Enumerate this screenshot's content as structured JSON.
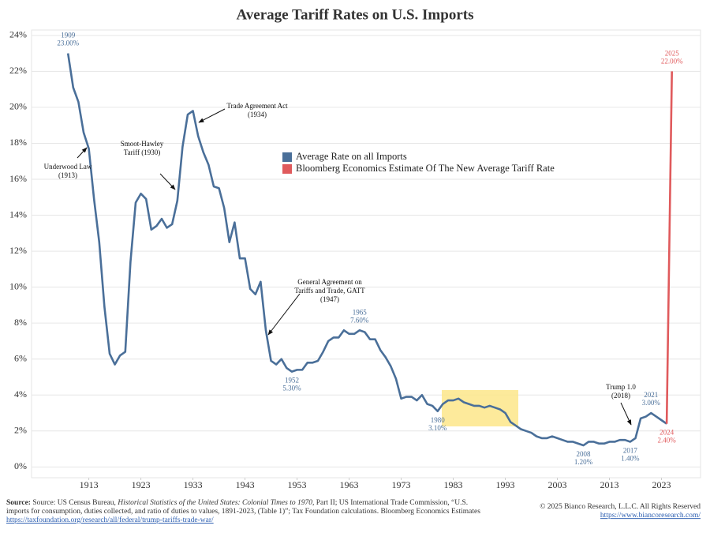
{
  "chart_data": {
    "type": "line",
    "title": "Average Tariff Rates on U.S. Imports",
    "xlim": [
      1902,
      2030.5
    ],
    "xticks": [
      1913,
      1923,
      1933,
      1943,
      1953,
      1963,
      1973,
      1983,
      1993,
      2003,
      2013,
      2023
    ],
    "ylim": [
      -0.6,
      24.3
    ],
    "yticks": [
      {
        "value": 0,
        "label": "0%"
      },
      {
        "value": 2,
        "label": "2%"
      },
      {
        "value": 4,
        "label": "4%"
      },
      {
        "value": 6,
        "label": "6%"
      },
      {
        "value": 8,
        "label": "8%"
      },
      {
        "value": 10,
        "label": "10%"
      },
      {
        "value": 12,
        "label": "12%"
      },
      {
        "value": 14,
        "label": "14%"
      },
      {
        "value": 16,
        "label": "16%"
      },
      {
        "value": 18,
        "label": "18%"
      },
      {
        "value": 20,
        "label": "20%"
      },
      {
        "value": 22,
        "label": "22%"
      },
      {
        "value": 24,
        "label": "24%"
      }
    ],
    "grid": true,
    "series": [
      {
        "name": "Average Rate on all Imports",
        "color": "#4a6f99",
        "x": [
          1909,
          1910,
          1911,
          1912,
          1913,
          1914,
          1915,
          1916,
          1917,
          1918,
          1919,
          1920,
          1921,
          1922,
          1923,
          1924,
          1925,
          1926,
          1927,
          1928,
          1929,
          1930,
          1931,
          1932,
          1933,
          1934,
          1935,
          1936,
          1937,
          1938,
          1939,
          1940,
          1941,
          1942,
          1943,
          1944,
          1945,
          1946,
          1947,
          1948,
          1949,
          1950,
          1951,
          1952,
          1953,
          1954,
          1955,
          1956,
          1957,
          1958,
          1959,
          1960,
          1961,
          1962,
          1963,
          1964,
          1965,
          1966,
          1967,
          1968,
          1969,
          1970,
          1971,
          1972,
          1973,
          1974,
          1975,
          1976,
          1977,
          1978,
          1979,
          1980,
          1981,
          1982,
          1983,
          1984,
          1985,
          1986,
          1987,
          1988,
          1989,
          1990,
          1991,
          1992,
          1993,
          1994,
          1995,
          1996,
          1997,
          1998,
          1999,
          2000,
          2001,
          2002,
          2003,
          2004,
          2005,
          2006,
          2007,
          2008,
          2009,
          2010,
          2011,
          2012,
          2013,
          2014,
          2015,
          2016,
          2017,
          2018,
          2019,
          2020,
          2021,
          2022,
          2023,
          2024
        ],
        "values": [
          23.0,
          21.1,
          20.3,
          18.6,
          17.7,
          14.9,
          12.5,
          8.9,
          6.3,
          5.7,
          6.2,
          6.4,
          11.4,
          14.7,
          15.2,
          14.9,
          13.2,
          13.4,
          13.8,
          13.3,
          13.5,
          14.8,
          17.8,
          19.6,
          19.8,
          18.4,
          17.5,
          16.8,
          15.6,
          15.5,
          14.4,
          12.5,
          13.6,
          11.6,
          11.6,
          9.9,
          9.6,
          10.3,
          7.6,
          5.9,
          5.7,
          6.0,
          5.5,
          5.3,
          5.4,
          5.4,
          5.8,
          5.8,
          5.9,
          6.4,
          7.0,
          7.2,
          7.2,
          7.6,
          7.4,
          7.4,
          7.6,
          7.5,
          7.1,
          7.1,
          6.5,
          6.1,
          5.6,
          4.9,
          3.8,
          3.9,
          3.9,
          3.7,
          4.0,
          3.5,
          3.4,
          3.1,
          3.5,
          3.7,
          3.7,
          3.8,
          3.6,
          3.5,
          3.4,
          3.4,
          3.3,
          3.4,
          3.3,
          3.2,
          3.0,
          2.5,
          2.3,
          2.1,
          2.0,
          1.9,
          1.7,
          1.6,
          1.6,
          1.7,
          1.6,
          1.5,
          1.4,
          1.4,
          1.3,
          1.2,
          1.4,
          1.4,
          1.3,
          1.3,
          1.4,
          1.4,
          1.5,
          1.5,
          1.4,
          1.6,
          2.7,
          2.8,
          3.0,
          2.8,
          2.6,
          2.4
        ],
        "value_labels": [
          "23.00%",
          null,
          null,
          null,
          null,
          null,
          null,
          null,
          null,
          null,
          null,
          null,
          null,
          null,
          null,
          null,
          null,
          null,
          null,
          null,
          null,
          null,
          null,
          null,
          null,
          null,
          null,
          null,
          null,
          null,
          null,
          null,
          null,
          null,
          null,
          null,
          null,
          null,
          null,
          null,
          null,
          null,
          null,
          "5.30%",
          null,
          null,
          null,
          null,
          null,
          null,
          null,
          null,
          null,
          null,
          null,
          null,
          "7.60%",
          null,
          null,
          null,
          null,
          null,
          null,
          null,
          null,
          null,
          null,
          null,
          null,
          null,
          null,
          "3.10%",
          null,
          null,
          null,
          null,
          null,
          null,
          null,
          null,
          null,
          null,
          null,
          null,
          null,
          null,
          null,
          null,
          null,
          null,
          null,
          null,
          null,
          null,
          null,
          null,
          null,
          null,
          null,
          "1.20%",
          null,
          null,
          null,
          null,
          null,
          null,
          null,
          null,
          "1.40%",
          null,
          null,
          null,
          "3.00%",
          null,
          null,
          null
        ]
      },
      {
        "name": "Bloomberg Economics Estimate Of The New Average Tariff Rate",
        "color": "#e05a5c",
        "x": [
          2024,
          2025
        ],
        "values": [
          2.4,
          22.0
        ],
        "value_labels": [
          "2.40%",
          "22.00%"
        ]
      }
    ],
    "annotations": [
      {
        "lines": [
          "Underwood Law",
          "(1913)"
        ]
      },
      {
        "lines": [
          "Smoot-Hawley",
          "Tariff (1930)"
        ]
      },
      {
        "lines": [
          "Trade Agreement Act",
          "(1934)"
        ]
      },
      {
        "lines": [
          "General Agreement on",
          "Tariffs and Trade, GATT",
          "(1947)"
        ]
      },
      {
        "lines": [
          "Trump 1.0",
          "(2018)"
        ]
      }
    ],
    "source": {
      "label": "Source:",
      "lines": [
        [
          {
            "text": "Source: US Census Bureau, "
          },
          {
            "text": "Historical Statistics of the United States: Colonial Times to 1970",
            "italic": true
          },
          {
            "text": ", Part II; US International Trade Commission, “U.S."
          }
        ],
        [
          {
            "text": "imports for consumption, duties collected, and ratio of duties to values, 1891-2023, (Table 1)”; Tax Foundation calculations. Bloomberg Economics Estimates"
          }
        ],
        [
          {
            "text": "https://taxfoundation.org/research/all/federal/trump-tariffs-trade-war/",
            "link": true
          }
        ]
      ]
    },
    "copyright": "© 2025 Bianco Research, L.L.C. All Rights Reserved",
    "website": "https://www.biancoresearch.com/"
  }
}
